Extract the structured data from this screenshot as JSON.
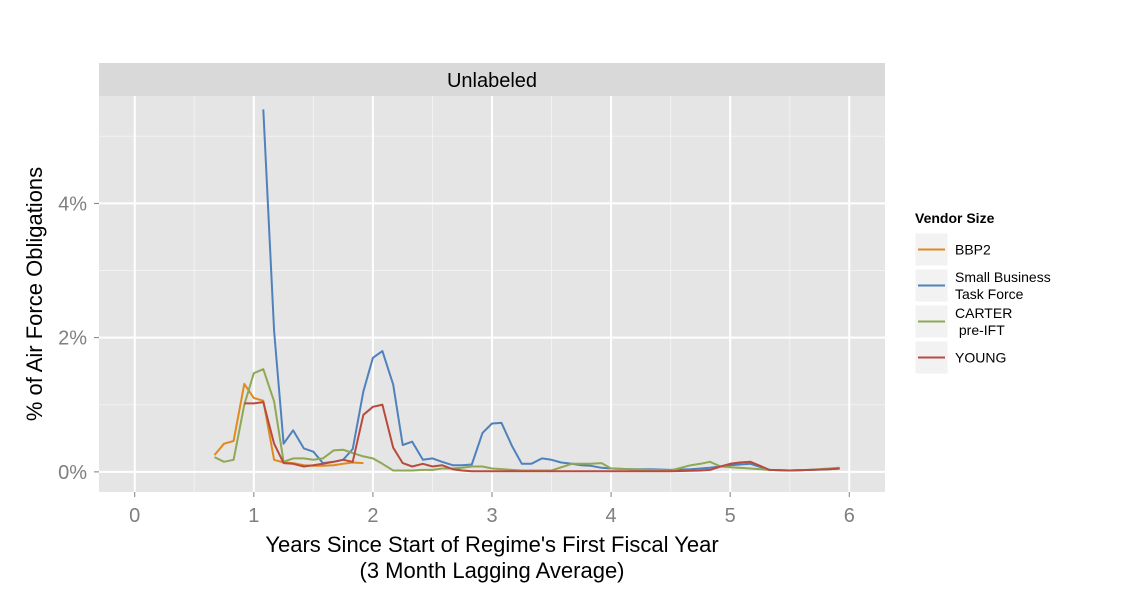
{
  "chart_data": {
    "type": "line",
    "facet_label": "Unlabeled",
    "xlabel": "Years Since Start of Regime's First Fiscal Year",
    "xlabel_sub": "(3 Month Lagging Average)",
    "ylabel": "% of Air Force Obligations",
    "xlim": [
      -0.3,
      6.3
    ],
    "ylim": [
      -0.3,
      5.6
    ],
    "x_ticks": [
      0,
      1,
      2,
      3,
      4,
      5,
      6
    ],
    "x_tick_labels": [
      "0",
      "1",
      "2",
      "3",
      "4",
      "5",
      "6"
    ],
    "y_ticks": [
      0,
      2,
      4
    ],
    "y_tick_labels": [
      "0%",
      "2%",
      "4%"
    ],
    "grid": true,
    "legend_title": "Vendor Size",
    "legend_position": "right",
    "series": [
      {
        "name": "BBP2",
        "legend_lines": [
          "BBP2"
        ],
        "color": "#E08A1E",
        "x": [
          0.67,
          0.75,
          0.83,
          0.92,
          1.0,
          1.08,
          1.17,
          1.25,
          1.33,
          1.42,
          1.5,
          1.58,
          1.67,
          1.75,
          1.83,
          1.92
        ],
        "y": [
          0.25,
          0.42,
          0.46,
          1.31,
          1.1,
          1.06,
          0.18,
          0.14,
          0.13,
          0.1,
          0.09,
          0.09,
          0.1,
          0.12,
          0.14,
          0.13
        ]
      },
      {
        "name": "Small Business Task Force",
        "legend_lines": [
          "Small Business",
          "Task Force"
        ],
        "color": "#4F81BD",
        "x": [
          1.08,
          1.17,
          1.25,
          1.33,
          1.42,
          1.5,
          1.58,
          1.67,
          1.75,
          1.83,
          1.92,
          2.0,
          2.08,
          2.17,
          2.25,
          2.33,
          2.42,
          2.5,
          2.58,
          2.67,
          2.75,
          2.83,
          2.92,
          3.0,
          3.08,
          3.17,
          3.25,
          3.33,
          3.42,
          3.5,
          3.58,
          3.67,
          3.75,
          3.83,
          3.92,
          4.0,
          4.17,
          4.33,
          4.5,
          4.67,
          4.83,
          5.0,
          5.17,
          5.33,
          5.5,
          5.67,
          5.83,
          5.92
        ],
        "y": [
          5.4,
          2.1,
          0.42,
          0.62,
          0.35,
          0.3,
          0.13,
          0.15,
          0.18,
          0.34,
          1.2,
          1.7,
          1.8,
          1.3,
          0.4,
          0.45,
          0.18,
          0.2,
          0.15,
          0.1,
          0.1,
          0.11,
          0.58,
          0.72,
          0.73,
          0.38,
          0.12,
          0.12,
          0.2,
          0.18,
          0.14,
          0.12,
          0.1,
          0.09,
          0.06,
          0.05,
          0.04,
          0.04,
          0.03,
          0.04,
          0.06,
          0.1,
          0.12,
          0.03,
          0.02,
          0.03,
          0.04,
          0.05
        ]
      },
      {
        "name": "CARTER pre-IFT",
        "legend_lines": [
          "CARTER",
          " pre-IFT"
        ],
        "color": "#8EA855",
        "x": [
          0.67,
          0.75,
          0.83,
          0.92,
          1.0,
          1.08,
          1.17,
          1.25,
          1.33,
          1.42,
          1.5,
          1.58,
          1.67,
          1.75,
          1.83,
          1.92,
          2.0,
          2.08,
          2.17,
          2.25,
          2.33,
          2.42,
          2.5,
          2.58,
          2.67,
          2.75,
          2.83,
          2.92,
          3.0,
          3.25,
          3.5,
          3.67,
          3.83,
          3.92,
          4.0,
          4.17,
          4.5,
          4.67,
          4.75,
          4.83,
          4.92,
          5.0,
          5.17,
          5.33,
          5.5,
          5.67,
          5.83,
          5.92
        ],
        "y": [
          0.22,
          0.15,
          0.18,
          1.0,
          1.47,
          1.53,
          1.05,
          0.15,
          0.2,
          0.2,
          0.18,
          0.2,
          0.32,
          0.33,
          0.28,
          0.23,
          0.2,
          0.12,
          0.02,
          0.02,
          0.02,
          0.03,
          0.03,
          0.05,
          0.05,
          0.06,
          0.08,
          0.08,
          0.05,
          0.02,
          0.02,
          0.12,
          0.12,
          0.13,
          0.05,
          0.04,
          0.02,
          0.1,
          0.12,
          0.15,
          0.08,
          0.07,
          0.05,
          0.03,
          0.02,
          0.03,
          0.05,
          0.06
        ]
      },
      {
        "name": "YOUNG",
        "legend_lines": [
          "YOUNG"
        ],
        "color": "#B84A3E",
        "x": [
          0.92,
          1.0,
          1.08,
          1.17,
          1.25,
          1.33,
          1.42,
          1.5,
          1.58,
          1.67,
          1.75,
          1.83,
          1.92,
          2.0,
          2.08,
          2.17,
          2.25,
          2.33,
          2.42,
          2.5,
          2.58,
          2.67,
          2.75,
          2.83,
          2.92,
          3.0,
          3.25,
          3.5,
          3.75,
          4.0,
          4.25,
          4.5,
          4.75,
          4.83,
          4.92,
          5.0,
          5.08,
          5.17,
          5.25,
          5.33,
          5.5,
          5.67,
          5.83,
          5.92
        ],
        "y": [
          1.02,
          1.02,
          1.04,
          0.42,
          0.13,
          0.12,
          0.08,
          0.1,
          0.12,
          0.15,
          0.18,
          0.15,
          0.85,
          0.97,
          1.0,
          0.36,
          0.13,
          0.08,
          0.12,
          0.08,
          0.1,
          0.04,
          0.02,
          0.01,
          0.01,
          0.01,
          0.01,
          0.01,
          0.01,
          0.01,
          0.01,
          0.01,
          0.02,
          0.03,
          0.08,
          0.12,
          0.14,
          0.15,
          0.09,
          0.03,
          0.02,
          0.03,
          0.04,
          0.05
        ]
      }
    ]
  }
}
